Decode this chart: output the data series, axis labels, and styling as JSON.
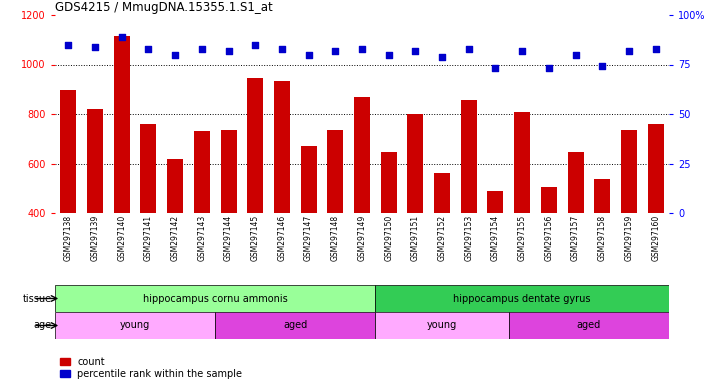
{
  "title": "GDS4215 / MmugDNA.15355.1.S1_at",
  "samples": [
    "GSM297138",
    "GSM297139",
    "GSM297140",
    "GSM297141",
    "GSM297142",
    "GSM297143",
    "GSM297144",
    "GSM297145",
    "GSM297146",
    "GSM297147",
    "GSM297148",
    "GSM297149",
    "GSM297150",
    "GSM297151",
    "GSM297152",
    "GSM297153",
    "GSM297154",
    "GSM297155",
    "GSM297156",
    "GSM297157",
    "GSM297158",
    "GSM297159",
    "GSM297160"
  ],
  "counts": [
    897,
    820,
    1115,
    760,
    620,
    730,
    735,
    945,
    935,
    672,
    735,
    870,
    645,
    800,
    563,
    857,
    490,
    808,
    505,
    645,
    538,
    735,
    760
  ],
  "percentiles": [
    85,
    84,
    89,
    83,
    80,
    83,
    82,
    85,
    83,
    80,
    82,
    83,
    80,
    82,
    79,
    83,
    73,
    82,
    73,
    80,
    74,
    82,
    83
  ],
  "ymin": 400,
  "ymax": 1200,
  "yticks_left": [
    400,
    600,
    800,
    1000,
    1200
  ],
  "yticks_right": [
    0,
    25,
    50,
    75,
    100
  ],
  "bar_color": "#cc0000",
  "dot_color": "#0000cc",
  "tissue_groups": [
    {
      "label": "hippocampus cornu ammonis",
      "start": 0,
      "end": 12,
      "color": "#99ff99"
    },
    {
      "label": "hippocampus dentate gyrus",
      "start": 12,
      "end": 23,
      "color": "#33cc55"
    }
  ],
  "age_groups": [
    {
      "label": "young",
      "start": 0,
      "end": 6,
      "color": "#ffaaff"
    },
    {
      "label": "aged",
      "start": 6,
      "end": 12,
      "color": "#dd44dd"
    },
    {
      "label": "young",
      "start": 12,
      "end": 17,
      "color": "#ffaaff"
    },
    {
      "label": "aged",
      "start": 17,
      "end": 23,
      "color": "#dd44dd"
    }
  ],
  "tissue_label": "tissue",
  "age_label": "age",
  "legend_count_label": "count",
  "legend_pct_label": "percentile rank within the sample",
  "background_color": "#ffffff"
}
